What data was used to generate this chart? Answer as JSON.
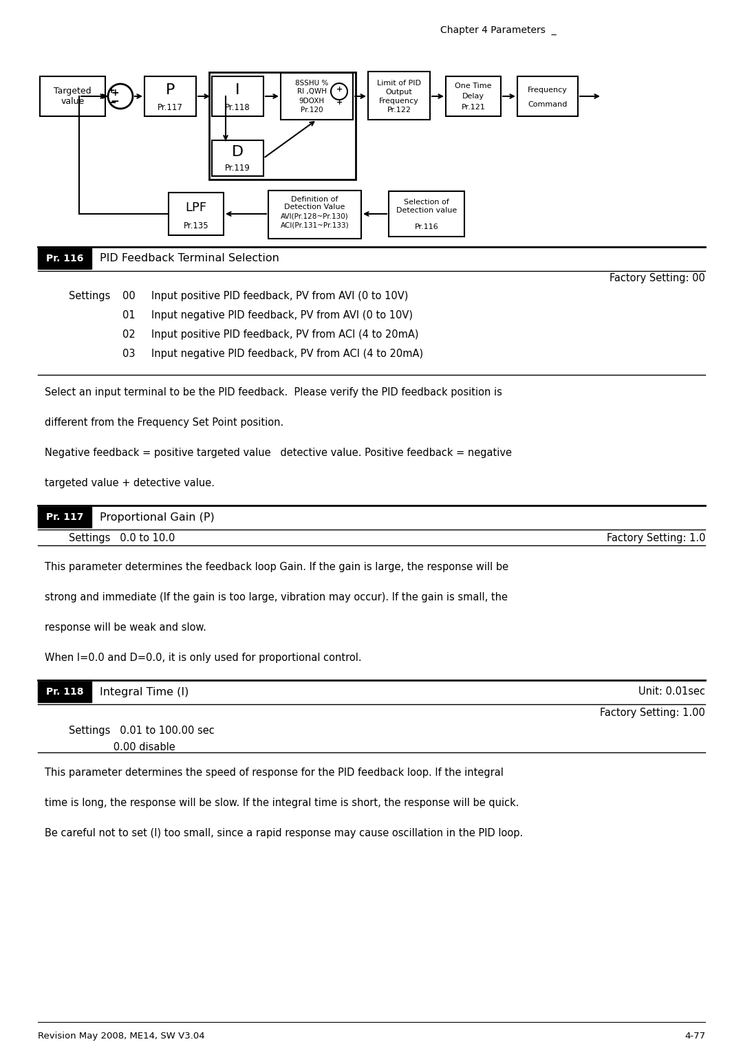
{
  "chapter_header": "Chapter 4 Parameters  _",
  "footer_left": "Revision May 2008, ME14, SW V3.04",
  "footer_right": "4-77",
  "bg_color": "#ffffff",
  "pr116": {
    "number": "Pr. 116",
    "title": "PID Feedback Terminal Selection",
    "factory_setting": "Factory Setting: 00",
    "settings_label": "Settings",
    "settings": [
      {
        "code": "00",
        "desc": "Input positive PID feedback, PV from AVI (0 to 10V)"
      },
      {
        "code": "01",
        "desc": "Input negative PID feedback, PV from AVI (0 to 10V)"
      },
      {
        "code": "02",
        "desc": "Input positive PID feedback, PV from ACI (4 to 20mA)"
      },
      {
        "code": "03",
        "desc": "Input negative PID feedback, PV from ACI (4 to 20mA)"
      }
    ],
    "description": [
      "Select an input terminal to be the PID feedback.  Please verify the PID feedback position is",
      "",
      "different from the Frequency Set Point position.",
      "",
      "Negative feedback = positive targeted value   detective value. Positive feedback = negative",
      "",
      "targeted value + detective value."
    ]
  },
  "pr117": {
    "number": "Pr. 117",
    "title": "Proportional Gain (P)",
    "settings_range": "Settings   0.0 to 10.0",
    "factory_setting": "Factory Setting: 1.0",
    "description": [
      "This parameter determines the feedback loop Gain. If the gain is large, the response will be",
      "",
      "strong and immediate (If the gain is too large, vibration may occur). If the gain is small, the",
      "",
      "response will be weak and slow.",
      "",
      "When I=0.0 and D=0.0, it is only used for proportional control."
    ]
  },
  "pr118": {
    "number": "Pr. 118",
    "title": "Integral Time (I)",
    "unit": "Unit: 0.01sec",
    "factory_setting": "Factory Setting: 1.00",
    "settings_line1": "Settings   0.01 to 100.00 sec",
    "settings_line2": "              0.00 disable",
    "description": [
      "This parameter determines the speed of response for the PID feedback loop. If the integral",
      "",
      "time is long, the response will be slow. If the integral time is short, the response will be quick.",
      "",
      "Be careful not to set (I) too small, since a rapid response may cause oscillation in the PID loop."
    ]
  }
}
